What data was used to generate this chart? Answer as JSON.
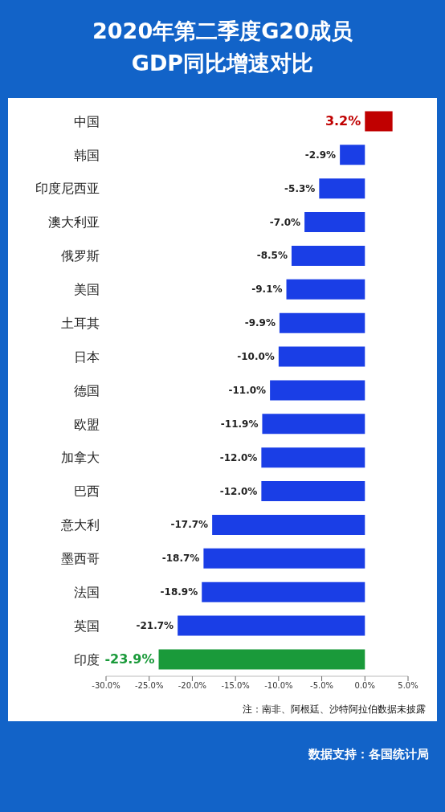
{
  "chart_data": {
    "type": "bar",
    "orientation": "horizontal",
    "title": "2020年第二季度G20成员\nGDP同比增速对比",
    "categories": [
      "中国",
      "韩国",
      "印度尼西亚",
      "澳大利亚",
      "俄罗斯",
      "美国",
      "土耳其",
      "日本",
      "德国",
      "欧盟",
      "加拿大",
      "巴西",
      "意大利",
      "墨西哥",
      "法国",
      "英国",
      "印度"
    ],
    "values": [
      3.2,
      -2.9,
      -5.3,
      -7.0,
      -8.5,
      -9.1,
      -9.9,
      -10.0,
      -11.0,
      -11.9,
      -12.0,
      -12.0,
      -17.7,
      -18.7,
      -18.9,
      -21.7,
      -23.9
    ],
    "colors": [
      "#c00000",
      "#1a3ee6",
      "#1a3ee6",
      "#1a3ee6",
      "#1a3ee6",
      "#1a3ee6",
      "#1a3ee6",
      "#1a3ee6",
      "#1a3ee6",
      "#1a3ee6",
      "#1a3ee6",
      "#1a3ee6",
      "#1a3ee6",
      "#1a3ee6",
      "#1a3ee6",
      "#1a3ee6",
      "#1a9a3a"
    ],
    "value_labels": [
      "3.2%",
      "-2.9%",
      "-5.3%",
      "-7.0%",
      "-8.5%",
      "-9.1%",
      "-9.9%",
      "-10.0%",
      "-11.0%",
      "-11.9%",
      "-12.0%",
      "-12.0%",
      "-17.7%",
      "-18.7%",
      "-18.9%",
      "-21.7%",
      "-23.9%"
    ],
    "xlim": [
      -30,
      5
    ],
    "xticks": [
      {
        "value": -30,
        "label": "-30.0%"
      },
      {
        "value": -25,
        "label": "-25.0%"
      },
      {
        "value": -20,
        "label": "-20.0%"
      },
      {
        "value": -15,
        "label": "-15.0%"
      },
      {
        "value": -10,
        "label": "-10.0%"
      },
      {
        "value": -5,
        "label": "-5.0%"
      },
      {
        "value": 0,
        "label": "0.0%"
      },
      {
        "value": 5,
        "label": "5.0%"
      }
    ],
    "grid": false,
    "legend": false,
    "annotations": [
      "注：南非、阿根廷、沙特阿拉伯数据未披露",
      "数据支持：各国统计局"
    ]
  }
}
